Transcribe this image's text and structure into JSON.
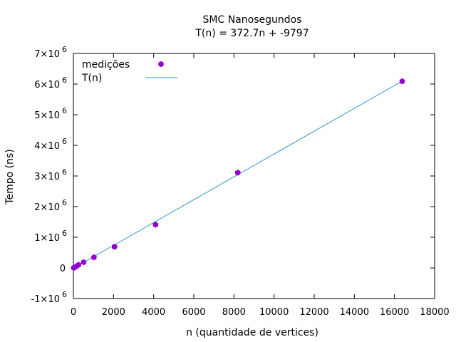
{
  "chart_data": {
    "type": "scatter",
    "title": "SMC Nanosegundos",
    "subtitle": "T(n) = 372.7n + -9797",
    "xlabel": "n (quantidade de vertices)",
    "ylabel": "Tempo (ns)",
    "xlim": [
      0,
      18000
    ],
    "ylim": [
      -1000000,
      7000000
    ],
    "x_ticks": [
      {
        "value": 0,
        "label": "0"
      },
      {
        "value": 2000,
        "label": "2000"
      },
      {
        "value": 4000,
        "label": "4000"
      },
      {
        "value": 6000,
        "label": "6000"
      },
      {
        "value": 8000,
        "label": "8000"
      },
      {
        "value": 10000,
        "label": "10000"
      },
      {
        "value": 12000,
        "label": "12000"
      },
      {
        "value": 14000,
        "label": "14000"
      },
      {
        "value": 16000,
        "label": "16000"
      },
      {
        "value": 18000,
        "label": "18000"
      }
    ],
    "y_ticks": [
      {
        "value": -1000000,
        "label": "-1×10",
        "exp": "6"
      },
      {
        "value": 0,
        "label": "0",
        "exp": ""
      },
      {
        "value": 1000000,
        "label": "1×10",
        "exp": "6"
      },
      {
        "value": 2000000,
        "label": "2×10",
        "exp": "6"
      },
      {
        "value": 3000000,
        "label": "3×10",
        "exp": "6"
      },
      {
        "value": 4000000,
        "label": "4×10",
        "exp": "6"
      },
      {
        "value": 5000000,
        "label": "5×10",
        "exp": "6"
      },
      {
        "value": 6000000,
        "label": "6×10",
        "exp": "6"
      },
      {
        "value": 7000000,
        "label": "7×10",
        "exp": "6"
      }
    ],
    "legend_position": "top-left",
    "grid": false,
    "series": [
      {
        "name": "medições",
        "kind": "points",
        "color": "#9400d3",
        "x": [
          16,
          32,
          64,
          128,
          256,
          512,
          1024,
          2048,
          4096,
          8192,
          16384
        ],
        "y": [
          5000,
          8000,
          15000,
          40000,
          100000,
          185000,
          345000,
          690000,
          1410000,
          3110000,
          6090000
        ]
      },
      {
        "name": "T(n)",
        "kind": "line",
        "color": "#3399cc",
        "slope": 372.7,
        "intercept": -9797,
        "x_range": [
          0,
          16384
        ]
      }
    ]
  }
}
